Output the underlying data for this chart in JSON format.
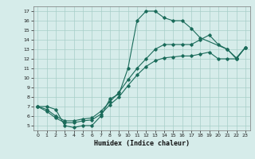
{
  "xlabel": "Humidex (Indice chaleur)",
  "background_color": "#d6ecea",
  "grid_color": "#a8cec8",
  "line_color": "#1a6b5a",
  "xlim": [
    -0.5,
    23.5
  ],
  "ylim": [
    4.5,
    17.5
  ],
  "xticks": [
    0,
    1,
    2,
    3,
    4,
    5,
    6,
    7,
    8,
    9,
    10,
    11,
    12,
    13,
    14,
    15,
    16,
    17,
    18,
    19,
    20,
    21,
    22,
    23
  ],
  "yticks": [
    5,
    6,
    7,
    8,
    9,
    10,
    11,
    12,
    13,
    14,
    15,
    16,
    17
  ],
  "line1_x": [
    0,
    1,
    2,
    3,
    4,
    5,
    6,
    7,
    8,
    9,
    10,
    11,
    12,
    13,
    14,
    15,
    16,
    17,
    18,
    21,
    22,
    23
  ],
  "line1_y": [
    7.0,
    7.0,
    6.7,
    5.0,
    4.8,
    5.0,
    5.0,
    6.0,
    7.8,
    8.3,
    11.0,
    16.0,
    17.0,
    17.0,
    16.3,
    16.0,
    16.0,
    15.2,
    14.2,
    13.0,
    12.1,
    13.2
  ],
  "line2_x": [
    0,
    1,
    2,
    3,
    4,
    5,
    6,
    7,
    8,
    9,
    10,
    11,
    12,
    13,
    14,
    15,
    16,
    17,
    18,
    19,
    20,
    21,
    22,
    23
  ],
  "line2_y": [
    7.0,
    6.7,
    6.0,
    5.5,
    5.5,
    5.7,
    5.8,
    6.5,
    7.5,
    8.5,
    9.8,
    11.0,
    12.0,
    13.0,
    13.5,
    13.5,
    13.5,
    13.5,
    14.0,
    14.5,
    13.5,
    13.0,
    12.0,
    13.2
  ],
  "line3_x": [
    0,
    1,
    2,
    3,
    4,
    5,
    6,
    7,
    8,
    9,
    10,
    11,
    12,
    13,
    14,
    15,
    16,
    17,
    18,
    19,
    20,
    21,
    22,
    23
  ],
  "line3_y": [
    7.0,
    6.5,
    5.8,
    5.3,
    5.3,
    5.5,
    5.6,
    6.2,
    7.2,
    8.0,
    9.2,
    10.3,
    11.2,
    11.8,
    12.1,
    12.2,
    12.3,
    12.3,
    12.5,
    12.7,
    12.0,
    12.0,
    12.0,
    13.2
  ]
}
